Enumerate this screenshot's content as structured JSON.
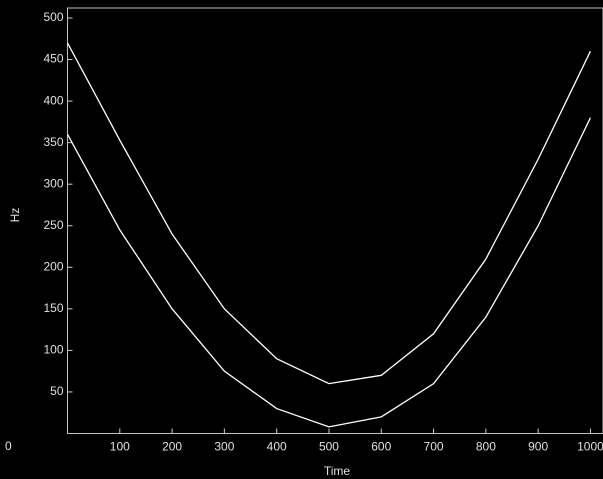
{
  "chart_data": {
    "type": "line",
    "x_label": "Time",
    "y_label": "Hz",
    "annotation": "0",
    "x": [
      0,
      100,
      200,
      300,
      400,
      500,
      600,
      700,
      800,
      900,
      1000
    ],
    "series": [
      {
        "color": "#ffffff",
        "values": [
          470,
          353,
          240,
          150,
          90,
          60,
          70,
          120,
          210,
          330,
          460
        ]
      },
      {
        "color": "#ffffff",
        "values": [
          360,
          245,
          150,
          75,
          30,
          8,
          20,
          60,
          140,
          250,
          380
        ]
      }
    ],
    "xlim": [
      0,
      1024
    ],
    "ylim": [
      0,
      512
    ],
    "xticks": [
      100,
      200,
      300,
      400,
      500,
      600,
      700,
      800,
      900,
      1000
    ],
    "yticks": [
      50,
      100,
      150,
      200,
      250,
      300,
      350,
      400,
      450,
      500
    ],
    "background": "#000000"
  }
}
